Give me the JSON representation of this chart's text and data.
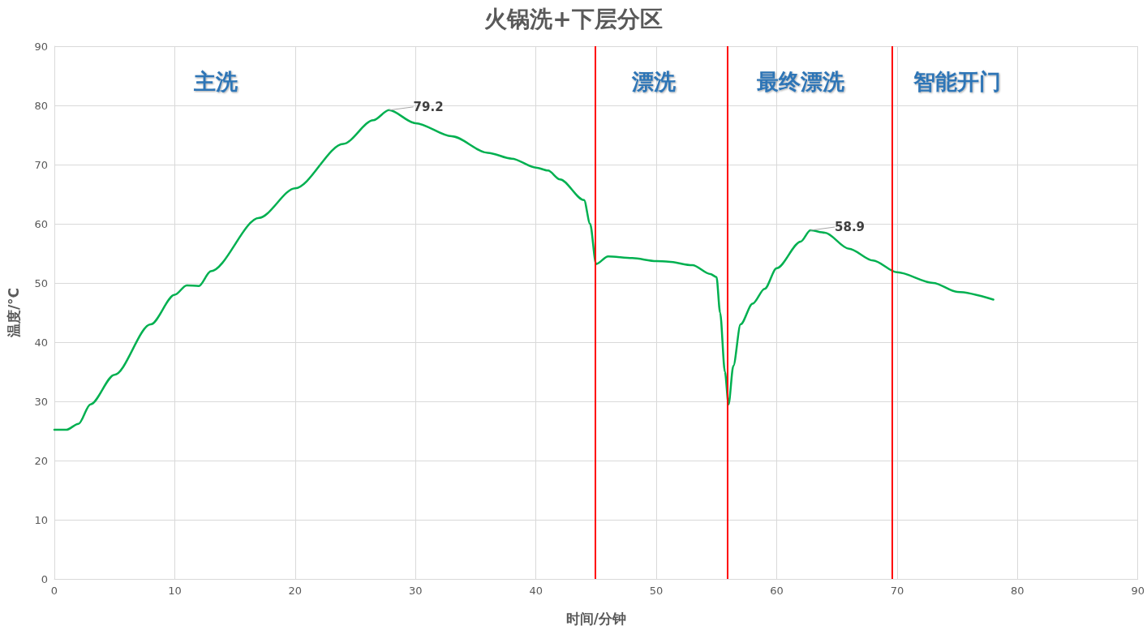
{
  "chart_data": {
    "type": "line",
    "title": "火锅洗+下层分区",
    "xlabel": "时间/分钟",
    "ylabel": "温度/°C",
    "xlim": [
      0,
      90
    ],
    "xticks": [
      0,
      10,
      20,
      30,
      40,
      50,
      60,
      70,
      80,
      90
    ],
    "ylim": [
      0,
      90
    ],
    "yticks": [
      0,
      10,
      20,
      30,
      40,
      50,
      60,
      70,
      80,
      90
    ],
    "grid": true,
    "marker": "none",
    "line_style": "solid",
    "series": [
      {
        "color": "#00b050",
        "x": [
          0,
          1,
          2,
          3,
          5,
          8,
          10,
          11,
          12,
          13,
          17,
          20,
          24,
          26.5,
          27.8,
          30,
          33,
          36,
          38,
          40,
          41,
          42,
          44,
          44.5,
          45,
          46,
          48,
          50,
          51,
          53,
          54.5,
          55,
          55.3,
          55.7,
          56,
          56.4,
          57,
          58,
          59,
          60,
          62,
          62.8,
          64,
          66,
          68,
          70,
          73,
          75,
          78
        ],
        "values": [
          25.2,
          25.2,
          26.2,
          29.5,
          34.5,
          43,
          48,
          49.6,
          49.5,
          52,
          61,
          66,
          73.5,
          77.5,
          79.2,
          77,
          74.8,
          72,
          71,
          69.5,
          69,
          67.5,
          64,
          60,
          53.2,
          54.5,
          54.2,
          53.7,
          53.6,
          53,
          51.5,
          51,
          45,
          35,
          29.5,
          36,
          43,
          46.5,
          49,
          52.5,
          57,
          58.9,
          58.5,
          55.8,
          53.8,
          51.8,
          50,
          48.5,
          47.2
        ],
        "value_labels": [
          null,
          null,
          null,
          null,
          null,
          null,
          null,
          null,
          null,
          null,
          null,
          null,
          null,
          null,
          "79.2",
          null,
          null,
          null,
          null,
          null,
          null,
          null,
          null,
          null,
          null,
          null,
          null,
          null,
          null,
          null,
          null,
          null,
          null,
          null,
          null,
          null,
          null,
          null,
          null,
          null,
          null,
          "58.9",
          null,
          null,
          null,
          null,
          null,
          null,
          null
        ]
      }
    ],
    "ref_lines": [
      {
        "axis": "x",
        "value": 44.9,
        "color": "#ff0000",
        "line_style": "solid"
      },
      {
        "axis": "x",
        "value": 55.9,
        "color": "#ff0000",
        "line_style": "solid"
      },
      {
        "axis": "x",
        "value": 69.6,
        "color": "#ff0000",
        "line_style": "solid"
      }
    ],
    "annotations": [
      "主洗",
      "漂洗",
      "最终漂洗",
      "智能开门"
    ]
  }
}
